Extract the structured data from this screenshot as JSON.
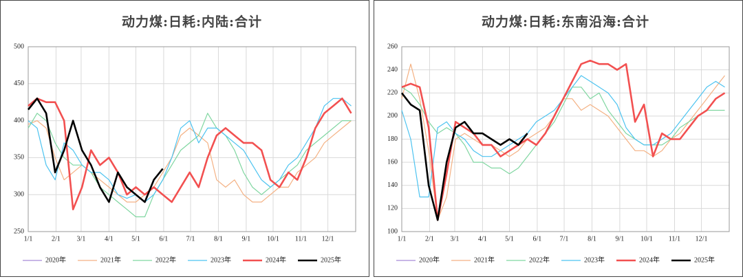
{
  "chart_data": [
    {
      "type": "line",
      "title": "动力煤:日耗:内陆:合计",
      "x": [
        0,
        10,
        20,
        30,
        40,
        50,
        60,
        70,
        80,
        90,
        100,
        110,
        120,
        130,
        140,
        150,
        160,
        170,
        180,
        190,
        200,
        210,
        220,
        230,
        240,
        250,
        260,
        270,
        280,
        290,
        300,
        310,
        320,
        330,
        340,
        350,
        360
      ],
      "xlim": [
        0,
        365
      ],
      "xticks": [
        {
          "value": 0,
          "label": "1/1"
        },
        {
          "value": 31,
          "label": "2/1"
        },
        {
          "value": 59,
          "label": "3/1"
        },
        {
          "value": 90,
          "label": "4/1"
        },
        {
          "value": 120,
          "label": "5/1"
        },
        {
          "value": 151,
          "label": "6/1"
        },
        {
          "value": 181,
          "label": "7/1"
        },
        {
          "value": 212,
          "label": "8/1"
        },
        {
          "value": 243,
          "label": "9/1"
        },
        {
          "value": 273,
          "label": "10/1"
        },
        {
          "value": 304,
          "label": "11/1"
        },
        {
          "value": 334,
          "label": "12/1"
        }
      ],
      "ylim": [
        250,
        500
      ],
      "yticks": [
        250,
        300,
        350,
        400,
        450,
        500
      ],
      "grid": true,
      "series": [
        {
          "name": "2020年",
          "color": "#a68bd6",
          "values": [
            null,
            null,
            null,
            null,
            null,
            null,
            null,
            null,
            null,
            null,
            null,
            null,
            null,
            null,
            null,
            null,
            null,
            null,
            null,
            null,
            null,
            null,
            null,
            null,
            null,
            null,
            null,
            null,
            null,
            null,
            null,
            null,
            null,
            null,
            null,
            null,
            null
          ]
        },
        {
          "name": "2021年",
          "color": "#f4b183",
          "values": [
            395,
            400,
            390,
            350,
            320,
            330,
            340,
            330,
            320,
            310,
            300,
            290,
            290,
            300,
            310,
            330,
            350,
            380,
            390,
            380,
            370,
            320,
            310,
            320,
            300,
            290,
            290,
            300,
            310,
            310,
            330,
            340,
            350,
            370,
            380,
            390,
            400
          ]
        },
        {
          "name": "2022年",
          "color": "#7fd6a0",
          "values": [
            390,
            410,
            400,
            370,
            350,
            340,
            340,
            330,
            310,
            300,
            290,
            280,
            270,
            270,
            300,
            320,
            340,
            360,
            370,
            380,
            410,
            390,
            380,
            360,
            330,
            310,
            300,
            310,
            320,
            330,
            340,
            360,
            370,
            380,
            390,
            400,
            400
          ]
        },
        {
          "name": "2023年",
          "color": "#4cc3f0",
          "values": [
            400,
            390,
            340,
            320,
            370,
            360,
            340,
            330,
            330,
            320,
            300,
            295,
            300,
            290,
            300,
            320,
            350,
            390,
            400,
            370,
            390,
            390,
            380,
            370,
            360,
            340,
            320,
            310,
            320,
            340,
            350,
            370,
            390,
            420,
            430,
            430,
            420
          ]
        },
        {
          "name": "2024年",
          "color": "#f25050",
          "values": [
            420,
            430,
            425,
            425,
            400,
            280,
            310,
            360,
            340,
            350,
            330,
            300,
            310,
            300,
            310,
            300,
            290,
            310,
            330,
            310,
            350,
            380,
            390,
            380,
            370,
            370,
            360,
            320,
            310,
            330,
            320,
            350,
            390,
            410,
            420,
            430,
            410
          ]
        },
        {
          "name": "2025年",
          "color": "#000000",
          "values": [
            415,
            430,
            410,
            330,
            360,
            400,
            360,
            340,
            310,
            290,
            330,
            310,
            300,
            290,
            320,
            335,
            null,
            null,
            null,
            null,
            null,
            null,
            null,
            null,
            null,
            null,
            null,
            null,
            null,
            null,
            null,
            null,
            null,
            null,
            null,
            null,
            null
          ]
        }
      ]
    },
    {
      "type": "line",
      "title": "动力煤:日耗:东南沿海:合计",
      "x": [
        0,
        10,
        20,
        30,
        40,
        50,
        60,
        70,
        80,
        90,
        100,
        110,
        120,
        130,
        140,
        150,
        160,
        170,
        180,
        190,
        200,
        210,
        220,
        230,
        240,
        250,
        260,
        270,
        280,
        290,
        300,
        310,
        320,
        330,
        340,
        350,
        360
      ],
      "xlim": [
        0,
        365
      ],
      "xticks": [
        {
          "value": 0,
          "label": "1/1"
        },
        {
          "value": 31,
          "label": "2/1"
        },
        {
          "value": 59,
          "label": "3/1"
        },
        {
          "value": 90,
          "label": "4/1"
        },
        {
          "value": 120,
          "label": "5/1"
        },
        {
          "value": 151,
          "label": "6/1"
        },
        {
          "value": 181,
          "label": "7/1"
        },
        {
          "value": 212,
          "label": "8/1"
        },
        {
          "value": 243,
          "label": "9/1"
        },
        {
          "value": 273,
          "label": "10/1"
        },
        {
          "value": 304,
          "label": "11/1"
        },
        {
          "value": 334,
          "label": "12/1"
        }
      ],
      "ylim": [
        100,
        260
      ],
      "yticks": [
        100,
        120,
        140,
        160,
        180,
        200,
        220,
        240,
        260
      ],
      "grid": true,
      "series": [
        {
          "name": "2020年",
          "color": "#a68bd6",
          "values": [
            null,
            null,
            null,
            null,
            null,
            null,
            null,
            null,
            null,
            null,
            null,
            null,
            null,
            null,
            null,
            null,
            null,
            null,
            null,
            null,
            null,
            null,
            null,
            null,
            null,
            null,
            null,
            null,
            null,
            null,
            null,
            null,
            null,
            null,
            null,
            null,
            null
          ]
        },
        {
          "name": "2021年",
          "color": "#f4b183",
          "values": [
            215,
            245,
            215,
            170,
            110,
            130,
            180,
            185,
            180,
            175,
            175,
            170,
            165,
            170,
            180,
            185,
            190,
            200,
            215,
            215,
            205,
            210,
            205,
            200,
            190,
            180,
            170,
            170,
            165,
            170,
            180,
            185,
            195,
            205,
            215,
            225,
            235
          ]
        },
        {
          "name": "2022年",
          "color": "#7fd6a0",
          "values": [
            225,
            220,
            210,
            195,
            185,
            190,
            185,
            175,
            160,
            160,
            155,
            155,
            150,
            155,
            165,
            175,
            185,
            195,
            210,
            225,
            225,
            215,
            220,
            205,
            195,
            185,
            180,
            175,
            175,
            175,
            180,
            190,
            195,
            200,
            205,
            205,
            205
          ]
        },
        {
          "name": "2023年",
          "color": "#4cc3f0",
          "values": [
            205,
            180,
            130,
            130,
            190,
            195,
            185,
            180,
            170,
            165,
            165,
            170,
            175,
            180,
            185,
            195,
            200,
            205,
            215,
            225,
            235,
            230,
            225,
            220,
            210,
            190,
            180,
            175,
            175,
            180,
            185,
            195,
            205,
            215,
            225,
            230,
            225
          ]
        },
        {
          "name": "2024年",
          "color": "#f25050",
          "values": [
            225,
            228,
            225,
            190,
            110,
            150,
            195,
            190,
            185,
            175,
            175,
            165,
            170,
            175,
            180,
            175,
            185,
            200,
            215,
            230,
            245,
            248,
            245,
            245,
            240,
            245,
            195,
            210,
            165,
            185,
            180,
            180,
            190,
            200,
            205,
            215,
            220
          ]
        },
        {
          "name": "2025年",
          "color": "#000000",
          "values": [
            220,
            210,
            205,
            140,
            110,
            160,
            190,
            195,
            185,
            185,
            180,
            175,
            180,
            175,
            185,
            null,
            null,
            null,
            null,
            null,
            null,
            null,
            null,
            null,
            null,
            null,
            null,
            null,
            null,
            null,
            null,
            null,
            null,
            null,
            null,
            null,
            null
          ]
        }
      ]
    }
  ]
}
